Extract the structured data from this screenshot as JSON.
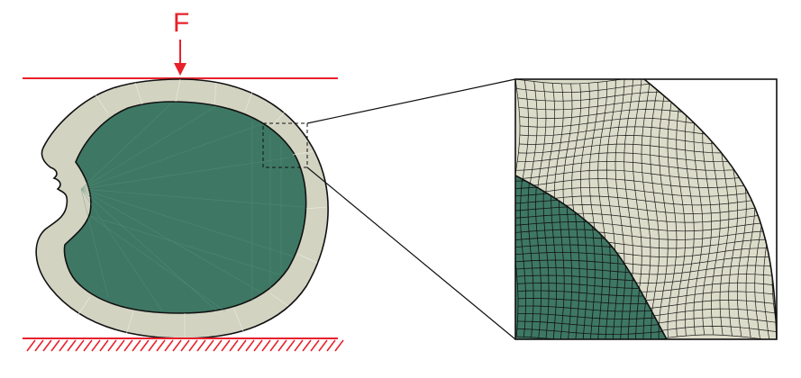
{
  "figure": {
    "force_label": "F",
    "colors": {
      "load_line": "#e8202a",
      "outer_layer": "#d3d3c2",
      "inner_core": "#3e7865",
      "outline": "#111111",
      "mesh_light": "#dcdcca",
      "mesh_dark": "#3e7865",
      "mesh_line": "#1b1b1b"
    },
    "parts": [
      "outer-layer",
      "inner-core",
      "top-plate",
      "fixed-base",
      "zoom-box",
      "mesh-detail"
    ]
  }
}
